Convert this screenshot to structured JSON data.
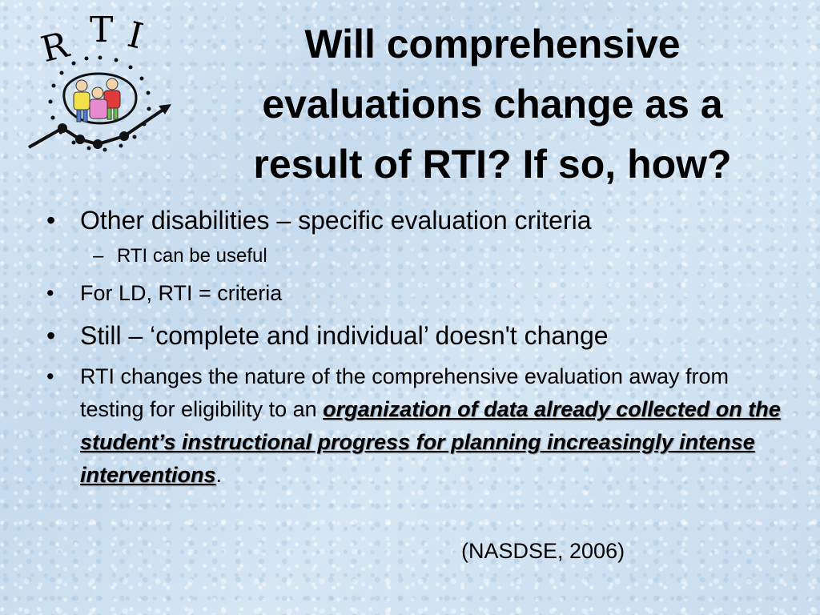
{
  "logo": {
    "letters": "RTI",
    "colors": {
      "ring": "#111111",
      "person_yellow": "#f2e04a",
      "person_red": "#e03a3a",
      "person_green": "#6cbf4a",
      "person_pink": "#e88ad0",
      "person_blue": "#4a7fd9"
    }
  },
  "title": {
    "line1": "Will comprehensive",
    "line2": "evaluations change as a",
    "line3": "result of RTI? If so, how?"
  },
  "bullets": {
    "marker": "•",
    "sub_marker": "–",
    "item1": "Other disabilities – specific evaluation criteria",
    "item1_sub": "RTI can be useful",
    "item2": "For LD, RTI = criteria",
    "item3": "Still – ‘complete and individual’ doesn't change",
    "item4_plain": "RTI changes the nature of the comprehensive evaluation away from testing for eligibility to an ",
    "item4_emphasis": "organization of data already collected on the student’s instructional progress for planning increasingly intense interventions",
    "item4_end": "."
  },
  "citation": "(NASDSE, 2006)"
}
